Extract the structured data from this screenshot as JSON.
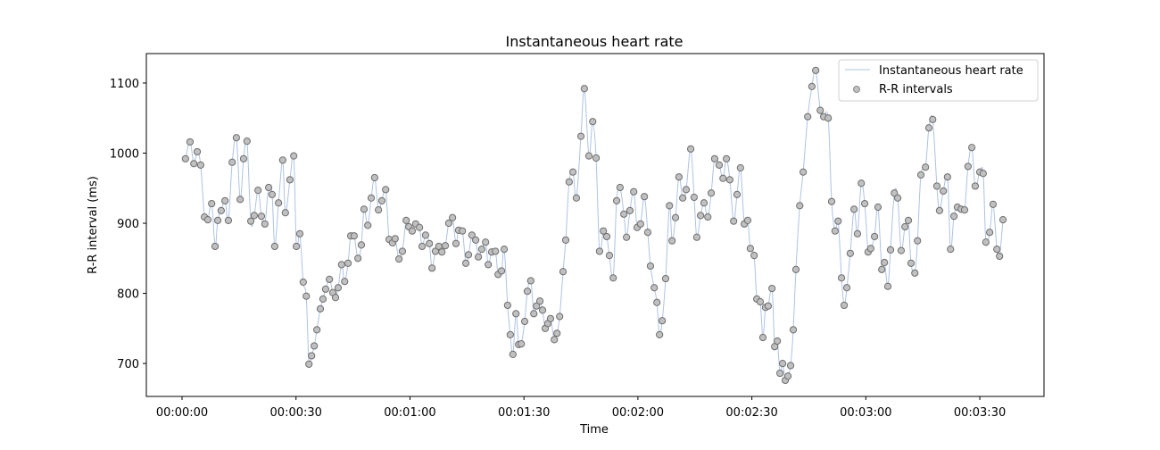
{
  "chart_data": {
    "type": "line",
    "title": "Instantaneous heart rate",
    "xlabel": "Time",
    "ylabel": "R-R interval (ms)",
    "xlim_seconds": [
      -9.4,
      226.9
    ],
    "ylim": [
      653,
      1142
    ],
    "grid": false,
    "legend_placement": "top-right",
    "legend": [
      "Instantaneous heart rate",
      "R-R intervals"
    ],
    "x_ticks": [
      {
        "value": 0,
        "label": "00:00:00"
      },
      {
        "value": 30,
        "label": "00:00:30"
      },
      {
        "value": 60,
        "label": "00:01:00"
      },
      {
        "value": 90,
        "label": "00:01:30"
      },
      {
        "value": 120,
        "label": "00:02:00"
      },
      {
        "value": 150,
        "label": "00:02:30"
      },
      {
        "value": 180,
        "label": "00:03:00"
      },
      {
        "value": 210,
        "label": "00:03:30"
      }
    ],
    "y_ticks": [
      {
        "value": 700,
        "label": "700"
      },
      {
        "value": 800,
        "label": "800"
      },
      {
        "value": 900,
        "label": "900"
      },
      {
        "value": 1000,
        "label": "1000"
      },
      {
        "value": 1100,
        "label": "1100"
      }
    ],
    "colors": {
      "line": "#aec3e3",
      "marker_fill": "#c0c0c0",
      "marker_edge": "#6e6e6e"
    },
    "series": [
      {
        "name": "R-R intervals",
        "t_seconds": [
          0.9,
          2.1,
          3.1,
          4.0,
          4.9,
          5.9,
          6.8,
          7.8,
          8.7,
          9.4,
          10.3,
          11.3,
          12.2,
          13.2,
          14.3,
          15.3,
          16.2,
          17.1,
          18.1,
          19.0,
          20.0,
          20.9,
          21.8,
          22.8,
          23.7,
          24.4,
          25.4,
          26.5,
          27.2,
          28.4,
          29.4,
          30.1,
          31.0,
          31.9,
          32.7,
          33.4,
          34.1,
          34.8,
          35.5,
          36.4,
          37.1,
          37.8,
          38.8,
          39.7,
          40.4,
          41.1,
          42.0,
          42.8,
          43.7,
          44.4,
          45.3,
          46.3,
          47.2,
          47.9,
          48.9,
          49.8,
          50.7,
          51.7,
          52.6,
          53.6,
          54.5,
          55.4,
          56.1,
          57.1,
          58.0,
          59.0,
          59.7,
          60.6,
          61.5,
          62.5,
          63.2,
          64.1,
          65.1,
          65.8,
          66.7,
          67.6,
          68.4,
          69.3,
          70.2,
          71.2,
          72.1,
          72.8,
          73.8,
          74.7,
          75.4,
          76.3,
          77.3,
          78.0,
          78.9,
          79.9,
          80.6,
          81.5,
          82.5,
          83.2,
          84.1,
          84.8,
          85.7,
          86.4,
          87.1,
          87.9,
          88.6,
          89.3,
          90.2,
          90.9,
          91.8,
          92.6,
          93.3,
          94.2,
          94.9,
          95.6,
          96.3,
          97.0,
          98.0,
          98.7,
          99.4,
          100.3,
          101.0,
          101.9,
          102.9,
          103.8,
          105.0,
          105.9,
          107.1,
          108.1,
          109.0,
          109.9,
          110.9,
          111.8,
          112.5,
          113.5,
          114.4,
          115.3,
          116.3,
          117.0,
          117.9,
          118.9,
          119.8,
          120.7,
          121.7,
          122.6,
          123.3,
          124.3,
          125.0,
          125.7,
          126.4,
          127.3,
          128.3,
          129.0,
          129.9,
          130.8,
          131.8,
          132.7,
          133.9,
          134.8,
          135.5,
          136.5,
          137.4,
          138.4,
          139.3,
          140.2,
          141.4,
          142.4,
          143.3,
          144.2,
          145.2,
          146.1,
          147.0,
          148.0,
          148.9,
          149.6,
          150.6,
          151.3,
          152.2,
          152.9,
          153.6,
          154.3,
          155.3,
          156.0,
          156.7,
          157.4,
          158.1,
          158.8,
          159.5,
          160.2,
          160.9,
          161.6,
          162.6,
          163.5,
          164.7,
          165.8,
          166.8,
          168.0,
          168.9,
          170.1,
          171.0,
          171.9,
          172.7,
          173.6,
          174.3,
          175.0,
          175.9,
          176.9,
          177.8,
          178.8,
          179.7,
          180.6,
          181.3,
          182.3,
          183.2,
          184.2,
          184.9,
          185.8,
          186.5,
          187.5,
          188.4,
          189.3,
          190.3,
          191.2,
          191.9,
          192.9,
          193.6,
          194.5,
          195.7,
          196.6,
          197.6,
          198.7,
          199.4,
          200.4,
          201.5,
          202.3,
          203.2,
          204.1,
          205.1,
          206.0,
          206.9,
          207.9,
          208.8,
          210.0,
          210.9,
          211.6,
          212.6,
          213.5,
          214.5,
          215.2,
          216.1
        ],
        "rr_ms": [
          992,
          1016,
          985,
          1002,
          983,
          909,
          905,
          928,
          867,
          904,
          918,
          932,
          904,
          987,
          1022,
          934,
          992,
          1017,
          903,
          911,
          947,
          910,
          899,
          951,
          941,
          867,
          929,
          990,
          915,
          962,
          996,
          867,
          885,
          816,
          796,
          699,
          711,
          725,
          748,
          778,
          792,
          806,
          820,
          801,
          794,
          808,
          841,
          817,
          843,
          882,
          882,
          850,
          869,
          920,
          897,
          936,
          965,
          919,
          932,
          948,
          877,
          872,
          878,
          849,
          860,
          904,
          895,
          889,
          899,
          894,
          867,
          883,
          871,
          836,
          860,
          867,
          859,
          868,
          900,
          908,
          871,
          890,
          889,
          843,
          855,
          883,
          876,
          852,
          863,
          873,
          841,
          859,
          860,
          827,
          832,
          863,
          783,
          741,
          713,
          771,
          727,
          728,
          760,
          803,
          818,
          771,
          782,
          789,
          776,
          750,
          757,
          764,
          734,
          743,
          767,
          831,
          876,
          959,
          973,
          936,
          1024,
          1092,
          996,
          1045,
          993,
          860,
          889,
          881,
          854,
          822,
          932,
          951,
          913,
          880,
          918,
          945,
          894,
          899,
          938,
          887,
          839,
          808,
          787,
          741,
          761,
          821,
          925,
          875,
          908,
          966,
          936,
          948,
          1006,
          937,
          880,
          911,
          929,
          909,
          943,
          992,
          983,
          964,
          992,
          962,
          903,
          941,
          979,
          899,
          904,
          864,
          854,
          792,
          788,
          737,
          780,
          782,
          807,
          724,
          732,
          686,
          700,
          676,
          682,
          697,
          748,
          834,
          925,
          973,
          1052,
          1095,
          1118,
          1061,
          1052,
          1050,
          931,
          889,
          903,
          822,
          783,
          808,
          857,
          920,
          885,
          957,
          928,
          859,
          864,
          881,
          923,
          834,
          844,
          810,
          862,
          943,
          936,
          861,
          895,
          904,
          843,
          829,
          875,
          969,
          980,
          1036,
          1048,
          953,
          918,
          946,
          966,
          863,
          910,
          923,
          920,
          919,
          981,
          1008,
          953,
          973,
          971,
          873,
          887,
          927,
          863,
          853,
          905
        ]
      }
    ]
  }
}
